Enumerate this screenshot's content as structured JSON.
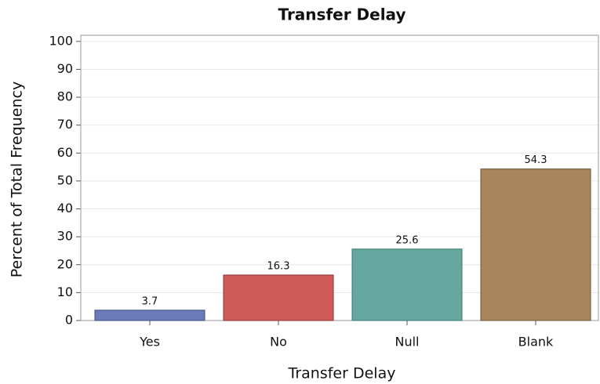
{
  "chart_data": {
    "type": "bar",
    "title": "Transfer Delay",
    "x_label": "Transfer Delay",
    "y_label": "Percent of Total Frequency",
    "categories": [
      "Yes",
      "No",
      "Null",
      "Blank"
    ],
    "values": [
      3.7,
      16.3,
      25.6,
      54.3
    ],
    "colors": [
      "#6a7bb8",
      "#d05a5a",
      "#66a8a0",
      "#a8855a"
    ],
    "edge_colors": [
      "#3e4d86",
      "#8e3434",
      "#357a72",
      "#6e5634"
    ],
    "ylim": [
      0,
      102.2
    ],
    "yticks": [
      0,
      10,
      20,
      30,
      40,
      50,
      60,
      70,
      80,
      90,
      100
    ],
    "grid": true
  }
}
